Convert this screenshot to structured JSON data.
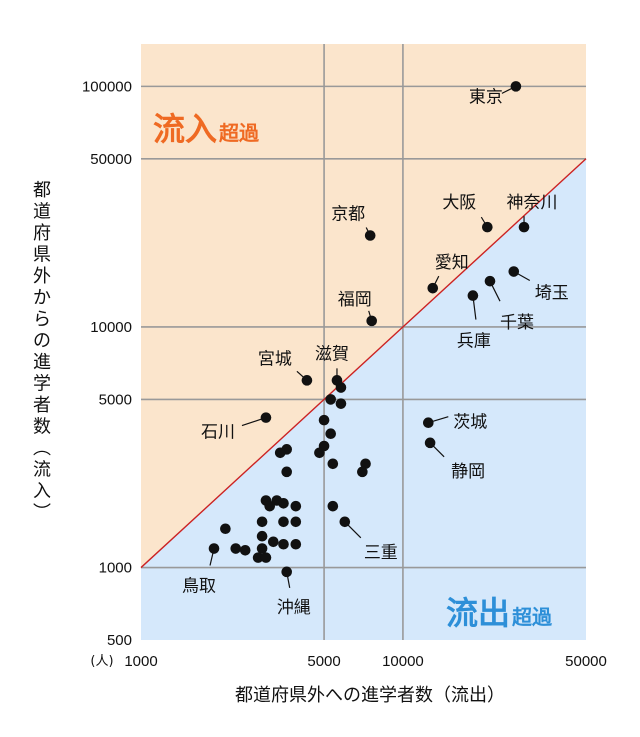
{
  "chart_data": {
    "type": "scatter",
    "title": "",
    "xlabel": "都道府県外への進学者数（流出）",
    "ylabel": "都道府県外からの進学者数（流入）",
    "unit_label": "(人)",
    "x_scale": "log",
    "y_scale": "log",
    "xlim": [
      1000,
      50000
    ],
    "ylim": [
      500,
      150000
    ],
    "x_ticks": [
      1000,
      5000,
      10000,
      50000
    ],
    "x_tick_labels": [
      "1000",
      "5000",
      "10000",
      "50000"
    ],
    "y_ticks": [
      500,
      1000,
      5000,
      10000,
      50000,
      100000
    ],
    "y_tick_labels": [
      "500",
      "1000",
      "5000",
      "10000",
      "50000",
      "100000"
    ],
    "grid": true,
    "reference_line": "y = x",
    "regions": {
      "inflow": {
        "label_main": "流入",
        "label_sub": "超過",
        "color": "#fbe5cc",
        "text_color": "#ef6a23"
      },
      "outflow": {
        "label_main": "流出",
        "label_sub": "超過",
        "color": "#d5e8fb",
        "text_color": "#2d8fd8"
      }
    },
    "reference_line_color": "#cc2222",
    "point_color": "#111111",
    "labeled_points": [
      {
        "name": "東京",
        "x": 27000,
        "y": 100000
      },
      {
        "name": "神奈川",
        "x": 29000,
        "y": 26000
      },
      {
        "name": "大阪",
        "x": 21000,
        "y": 26000
      },
      {
        "name": "京都",
        "x": 7500,
        "y": 24000
      },
      {
        "name": "愛知",
        "x": 13000,
        "y": 14500
      },
      {
        "name": "埼玉",
        "x": 26500,
        "y": 17000
      },
      {
        "name": "千葉",
        "x": 21500,
        "y": 15500
      },
      {
        "name": "兵庫",
        "x": 18500,
        "y": 13500
      },
      {
        "name": "福岡",
        "x": 7600,
        "y": 10600
      },
      {
        "name": "宮城",
        "x": 4300,
        "y": 6000
      },
      {
        "name": "滋賀",
        "x": 5600,
        "y": 6000
      },
      {
        "name": "石川",
        "x": 3000,
        "y": 4200
      },
      {
        "name": "茨城",
        "x": 12500,
        "y": 4000
      },
      {
        "name": "静岡",
        "x": 12700,
        "y": 3300
      },
      {
        "name": "三重",
        "x": 6000,
        "y": 1550
      },
      {
        "name": "鳥取",
        "x": 1900,
        "y": 1200
      },
      {
        "name": "沖縄",
        "x": 3600,
        "y": 960
      }
    ],
    "unlabeled_points": [
      {
        "x": 5800,
        "y": 5600
      },
      {
        "x": 5800,
        "y": 4800
      },
      {
        "x": 5300,
        "y": 5000
      },
      {
        "x": 5300,
        "y": 3600
      },
      {
        "x": 5000,
        "y": 3200
      },
      {
        "x": 5000,
        "y": 4100
      },
      {
        "x": 7200,
        "y": 2700
      },
      {
        "x": 7000,
        "y": 2500
      },
      {
        "x": 5400,
        "y": 2700
      },
      {
        "x": 4800,
        "y": 3000
      },
      {
        "x": 5400,
        "y": 1800
      },
      {
        "x": 3600,
        "y": 3100
      },
      {
        "x": 3400,
        "y": 3000
      },
      {
        "x": 3600,
        "y": 2500
      },
      {
        "x": 3900,
        "y": 1800
      },
      {
        "x": 3500,
        "y": 1850
      },
      {
        "x": 3300,
        "y": 1900
      },
      {
        "x": 3000,
        "y": 1900
      },
      {
        "x": 3100,
        "y": 1800
      },
      {
        "x": 3900,
        "y": 1550
      },
      {
        "x": 3500,
        "y": 1550
      },
      {
        "x": 2900,
        "y": 1550
      },
      {
        "x": 2100,
        "y": 1450
      },
      {
        "x": 3900,
        "y": 1250
      },
      {
        "x": 3500,
        "y": 1250
      },
      {
        "x": 3200,
        "y": 1280
      },
      {
        "x": 2900,
        "y": 1350
      },
      {
        "x": 2900,
        "y": 1200
      },
      {
        "x": 2300,
        "y": 1200
      },
      {
        "x": 2500,
        "y": 1180
      },
      {
        "x": 2800,
        "y": 1100
      },
      {
        "x": 3000,
        "y": 1100
      }
    ]
  }
}
